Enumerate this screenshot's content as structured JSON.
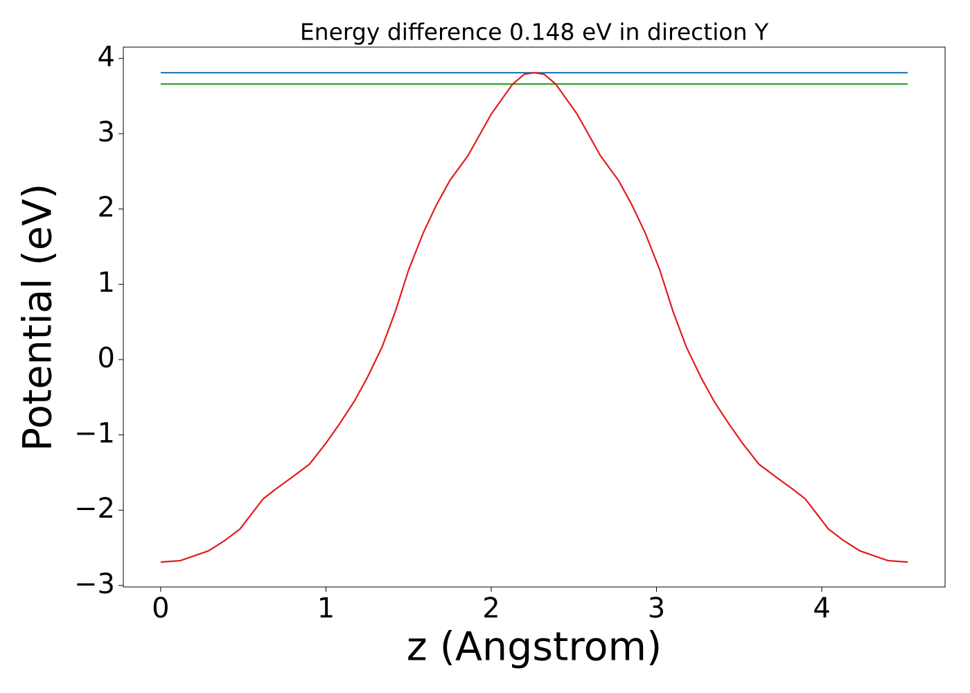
{
  "chart_data": {
    "type": "line",
    "title": "Energy difference 0.148 eV in direction Y",
    "xlabel": "z (Angstrom)",
    "ylabel": "Potential (eV)",
    "series": [
      {
        "color": "#1f77b4",
        "x": [
          0,
          4.52
        ],
        "values": [
          3.81,
          3.81
        ]
      },
      {
        "color": "#2ca02c",
        "x": [
          0,
          4.52
        ],
        "values": [
          3.66,
          3.66
        ]
      },
      {
        "color": "#e31a1c",
        "x": [
          0,
          0.12,
          0.29,
          0.39,
          0.48,
          0.62,
          0.69,
          0.79,
          0.9,
          1.0,
          1.08,
          1.17,
          1.25,
          1.34,
          1.42,
          1.5,
          1.59,
          1.67,
          1.75,
          1.86,
          2.0,
          2.13,
          2.2,
          2.26,
          2.32,
          2.39,
          2.52,
          2.66,
          2.77,
          2.85,
          2.93,
          3.02,
          3.1,
          3.18,
          3.27,
          3.35,
          3.44,
          3.52,
          3.62,
          3.73,
          3.83,
          3.9,
          4.04,
          4.13,
          4.23,
          4.4,
          4.52
        ],
        "values": [
          -2.69,
          -2.67,
          -2.54,
          -2.4,
          -2.25,
          -1.85,
          -1.73,
          -1.57,
          -1.39,
          -1.11,
          -0.86,
          -0.56,
          -0.24,
          0.17,
          0.64,
          1.19,
          1.69,
          2.06,
          2.38,
          2.71,
          3.26,
          3.66,
          3.79,
          3.81,
          3.79,
          3.66,
          3.26,
          2.71,
          2.38,
          2.06,
          1.69,
          1.19,
          0.64,
          0.17,
          -0.24,
          -0.56,
          -0.86,
          -1.11,
          -1.39,
          -1.57,
          -1.73,
          -1.85,
          -2.25,
          -2.4,
          -2.54,
          -2.67,
          -2.69
        ]
      }
    ],
    "xlim": [
      -0.226,
      4.746
    ],
    "ylim": [
      -3.02,
      4.15
    ],
    "xticks": [
      0,
      1,
      2,
      3,
      4
    ],
    "yticks": [
      {
        "value": -3,
        "label": "−3"
      },
      {
        "value": -2,
        "label": "−2"
      },
      {
        "value": -1,
        "label": "−1"
      },
      0,
      1,
      2,
      3,
      4
    ],
    "grid": false
  }
}
